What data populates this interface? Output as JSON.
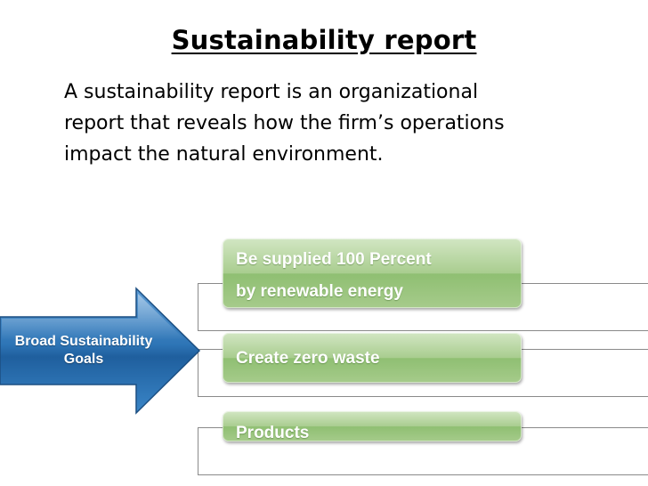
{
  "slide": {
    "title": "Sustainability report",
    "intro_lines": [
      "A sustainability report is an organizational",
      "report that reveals how the firm’s  operations",
      "impact the natural environment."
    ]
  },
  "diagram": {
    "arrow_label_lines": [
      "Broad Sustainability",
      "Goals"
    ],
    "goals": [
      {
        "lines": [
          "Be supplied 100 Percent",
          "by renewable energy"
        ]
      },
      {
        "lines": [
          "Create zero waste"
        ]
      },
      {
        "lines": [
          "Products"
        ]
      }
    ],
    "colors": {
      "arrow_blue": "#2e75b6",
      "panel_green": "#9dc67f",
      "box_border": "#8a8a8a"
    }
  }
}
